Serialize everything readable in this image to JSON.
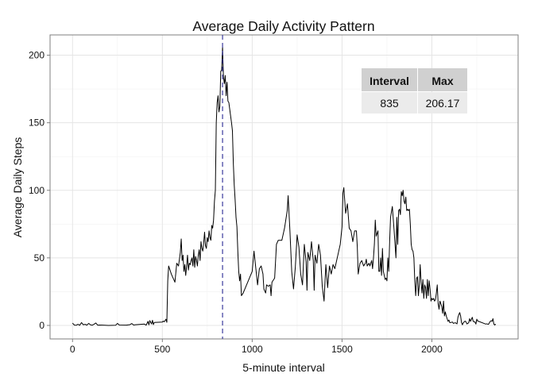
{
  "chart_data": {
    "type": "line",
    "title": "Average Daily Activity Pattern",
    "xlabel": "5-minute interval",
    "ylabel": "Average Daily Steps",
    "xlim": [
      -125,
      2480
    ],
    "ylim": [
      -10,
      215
    ],
    "x_ticks": [
      0,
      500,
      1000,
      1500,
      2000
    ],
    "y_ticks": [
      0,
      50,
      100,
      150,
      200
    ],
    "grid": true,
    "series": [
      {
        "color": "#000000",
        "points": [
          [
            0,
            1.7
          ],
          [
            10,
            0.3
          ],
          [
            20,
            0.1
          ],
          [
            30,
            0.8
          ],
          [
            40,
            0.1
          ],
          [
            50,
            2.1
          ],
          [
            60,
            0.5
          ],
          [
            70,
            0.8
          ],
          [
            80,
            0.2
          ],
          [
            90,
            1.5
          ],
          [
            100,
            0.4
          ],
          [
            110,
            0.2
          ],
          [
            120,
            0.9
          ],
          [
            130,
            1.8
          ],
          [
            140,
            0.2
          ],
          [
            150,
            0.3
          ],
          [
            200,
            0.0
          ],
          [
            240,
            0.1
          ],
          [
            250,
            1.5
          ],
          [
            260,
            0.3
          ],
          [
            300,
            0.2
          ],
          [
            320,
            0.6
          ],
          [
            330,
            1.4
          ],
          [
            340,
            0.3
          ],
          [
            350,
            0.5
          ],
          [
            400,
            1.0
          ],
          [
            410,
            0.2
          ],
          [
            420,
            3.0
          ],
          [
            425,
            0.4
          ],
          [
            430,
            3.6
          ],
          [
            440,
            1.1
          ],
          [
            445,
            3.8
          ],
          [
            450,
            0.6
          ],
          [
            455,
            2.2
          ],
          [
            500,
            2.5
          ],
          [
            505,
            3.2
          ],
          [
            510,
            2.7
          ],
          [
            515,
            3.5
          ],
          [
            520,
            4.6
          ],
          [
            525,
            2.3
          ],
          [
            530,
            33.0
          ],
          [
            535,
            44.0
          ],
          [
            545,
            40.0
          ],
          [
            550,
            38.0
          ],
          [
            560,
            35.0
          ],
          [
            570,
            32.0
          ],
          [
            580,
            46.0
          ],
          [
            590,
            44.0
          ],
          [
            600,
            54.0
          ],
          [
            605,
            64.0
          ],
          [
            610,
            48.0
          ],
          [
            615,
            52.0
          ],
          [
            620,
            40.0
          ],
          [
            625,
            45.0
          ],
          [
            630,
            37.0
          ],
          [
            635,
            44.0
          ],
          [
            640,
            52.0
          ],
          [
            645,
            41.0
          ],
          [
            650,
            46.0
          ],
          [
            655,
            45.0
          ],
          [
            660,
            48.0
          ],
          [
            665,
            50.0
          ],
          [
            670,
            44.0
          ],
          [
            675,
            56.0
          ],
          [
            680,
            43.0
          ],
          [
            685,
            51.0
          ],
          [
            690,
            48.0
          ],
          [
            695,
            44.0
          ],
          [
            700,
            52.0
          ],
          [
            705,
            56.0
          ],
          [
            710,
            48.0
          ],
          [
            715,
            62.0
          ],
          [
            720,
            57.0
          ],
          [
            725,
            55.0
          ],
          [
            730,
            61.0
          ],
          [
            735,
            69.0
          ],
          [
            740,
            59.0
          ],
          [
            745,
            57.0
          ],
          [
            750,
            65.0
          ],
          [
            755,
            62.0
          ],
          [
            760,
            70.0
          ],
          [
            765,
            65.0
          ],
          [
            770,
            63.0
          ],
          [
            775,
            74.0
          ],
          [
            780,
            72.0
          ],
          [
            785,
            78.0
          ],
          [
            790,
            92.0
          ],
          [
            795,
            100.0
          ],
          [
            800,
            150.0
          ],
          [
            805,
            165.0
          ],
          [
            810,
            170.0
          ],
          [
            815,
            158.0
          ],
          [
            820,
            162.0
          ],
          [
            825,
            188.0
          ],
          [
            830,
            189.0
          ],
          [
            835,
            206.17
          ],
          [
            840,
            184.0
          ],
          [
            845,
            179.0
          ],
          [
            850,
            185.0
          ],
          [
            855,
            170.0
          ],
          [
            860,
            180.0
          ],
          [
            865,
            166.0
          ],
          [
            870,
            165.0
          ],
          [
            880,
            155.0
          ],
          [
            885,
            150.0
          ],
          [
            890,
            144.0
          ],
          [
            895,
            120.0
          ],
          [
            900,
            104.0
          ],
          [
            905,
            93.0
          ],
          [
            910,
            80.0
          ],
          [
            915,
            73.0
          ],
          [
            920,
            55.0
          ],
          [
            925,
            40.0
          ],
          [
            930,
            33.0
          ],
          [
            935,
            38.0
          ],
          [
            940,
            22.0
          ],
          [
            945,
            23.0
          ],
          [
            950,
            24.0
          ],
          [
            1000,
            40.0
          ],
          [
            1010,
            55.0
          ],
          [
            1030,
            30.0
          ],
          [
            1040,
            42.0
          ],
          [
            1050,
            44.0
          ],
          [
            1060,
            38.0
          ],
          [
            1065,
            27.0
          ],
          [
            1075,
            24.0
          ],
          [
            1080,
            30.0
          ],
          [
            1090,
            29.0
          ],
          [
            1100,
            30.0
          ],
          [
            1105,
            22.0
          ],
          [
            1110,
            32.0
          ],
          [
            1125,
            35.0
          ],
          [
            1135,
            60.0
          ],
          [
            1145,
            63.0
          ],
          [
            1165,
            63.0
          ],
          [
            1180,
            72.0
          ],
          [
            1195,
            85.0
          ],
          [
            1200,
            96.0
          ],
          [
            1210,
            70.0
          ],
          [
            1220,
            40.0
          ],
          [
            1230,
            27.0
          ],
          [
            1240,
            43.0
          ],
          [
            1250,
            67.0
          ],
          [
            1260,
            58.0
          ],
          [
            1270,
            38.0
          ],
          [
            1280,
            30.0
          ],
          [
            1290,
            60.0
          ],
          [
            1300,
            47.0
          ],
          [
            1305,
            26.0
          ],
          [
            1310,
            54.0
          ],
          [
            1320,
            48.0
          ],
          [
            1330,
            62.0
          ],
          [
            1340,
            48.0
          ],
          [
            1345,
            26.0
          ],
          [
            1350,
            52.0
          ],
          [
            1360,
            46.0
          ],
          [
            1370,
            60.0
          ],
          [
            1380,
            52.0
          ],
          [
            1390,
            29.0
          ],
          [
            1400,
            18.0
          ],
          [
            1410,
            45.0
          ],
          [
            1420,
            28.0
          ],
          [
            1430,
            44.0
          ],
          [
            1440,
            38.0
          ],
          [
            1450,
            45.0
          ],
          [
            1460,
            42.0
          ],
          [
            1470,
            48.0
          ],
          [
            1480,
            54.0
          ],
          [
            1490,
            60.0
          ],
          [
            1500,
            73.0
          ],
          [
            1505,
            98.0
          ],
          [
            1510,
            102.0
          ],
          [
            1520,
            83.0
          ],
          [
            1530,
            90.0
          ],
          [
            1540,
            72.0
          ],
          [
            1550,
            70.0
          ],
          [
            1560,
            62.0
          ],
          [
            1570,
            70.0
          ],
          [
            1580,
            70.0
          ],
          [
            1585,
            58.0
          ],
          [
            1590,
            38.0
          ],
          [
            1600,
            46.0
          ],
          [
            1610,
            48.0
          ],
          [
            1620,
            44.0
          ],
          [
            1630,
            46.0
          ],
          [
            1635,
            49.0
          ],
          [
            1640,
            44.0
          ],
          [
            1650,
            46.0
          ],
          [
            1655,
            44.0
          ],
          [
            1660,
            46.0
          ],
          [
            1665,
            48.0
          ],
          [
            1670,
            42.0
          ],
          [
            1675,
            50.0
          ],
          [
            1680,
            60.0
          ],
          [
            1685,
            78.0
          ],
          [
            1690,
            66.0
          ],
          [
            1700,
            70.0
          ],
          [
            1705,
            40.0
          ],
          [
            1710,
            40.0
          ],
          [
            1715,
            50.0
          ],
          [
            1720,
            37.0
          ],
          [
            1725,
            57.0
          ],
          [
            1730,
            40.0
          ],
          [
            1740,
            34.0
          ],
          [
            1745,
            35.0
          ],
          [
            1750,
            33.0
          ],
          [
            1755,
            50.0
          ],
          [
            1760,
            40.0
          ],
          [
            1765,
            62.0
          ],
          [
            1770,
            80.0
          ],
          [
            1780,
            88.0
          ],
          [
            1790,
            70.0
          ],
          [
            1800,
            50.0
          ],
          [
            1805,
            80.0
          ],
          [
            1810,
            60.0
          ],
          [
            1815,
            85.0
          ],
          [
            1820,
            86.0
          ],
          [
            1825,
            82.0
          ],
          [
            1830,
            99.0
          ],
          [
            1835,
            96.0
          ],
          [
            1840,
            100.0
          ],
          [
            1845,
            92.0
          ],
          [
            1850,
            90.0
          ],
          [
            1855,
            95.0
          ],
          [
            1860,
            85.0
          ],
          [
            1865,
            86.0
          ],
          [
            1870,
            85.0
          ],
          [
            1875,
            86.0
          ],
          [
            1880,
            75.0
          ],
          [
            1885,
            60.0
          ],
          [
            1890,
            56.0
          ],
          [
            1895,
            55.0
          ],
          [
            1900,
            50.0
          ],
          [
            1905,
            33.0
          ],
          [
            1910,
            22.0
          ],
          [
            1915,
            35.0
          ],
          [
            1920,
            36.0
          ],
          [
            1925,
            22.0
          ],
          [
            1930,
            30.0
          ],
          [
            1935,
            45.0
          ],
          [
            1940,
            32.0
          ],
          [
            1945,
            24.0
          ],
          [
            1950,
            34.0
          ],
          [
            1955,
            20.0
          ],
          [
            1960,
            30.0
          ],
          [
            1965,
            28.0
          ],
          [
            1970,
            20.0
          ],
          [
            1975,
            34.0
          ],
          [
            1980,
            22.0
          ],
          [
            1985,
            33.0
          ],
          [
            1990,
            27.0
          ],
          [
            1995,
            18.0
          ],
          [
            2000,
            20.0
          ],
          [
            2005,
            19.0
          ],
          [
            2010,
            20.0
          ],
          [
            2015,
            18.0
          ],
          [
            2020,
            19.0
          ],
          [
            2025,
            24.0
          ],
          [
            2030,
            30.0
          ],
          [
            2035,
            16.0
          ],
          [
            2040,
            12.0
          ],
          [
            2045,
            18.0
          ],
          [
            2050,
            16.0
          ],
          [
            2055,
            14.0
          ],
          [
            2060,
            9.0
          ],
          [
            2065,
            18.0
          ],
          [
            2070,
            7.0
          ],
          [
            2075,
            10.0
          ],
          [
            2080,
            7.0
          ],
          [
            2085,
            5.0
          ],
          [
            2090,
            3.0
          ],
          [
            2095,
            4.0
          ],
          [
            2100,
            2.0
          ],
          [
            2115,
            2.5
          ],
          [
            2120,
            1.5
          ],
          [
            2130,
            2.0
          ],
          [
            2140,
            1.2
          ],
          [
            2145,
            6.0
          ],
          [
            2150,
            8.0
          ],
          [
            2155,
            9.5
          ],
          [
            2160,
            7.0
          ],
          [
            2165,
            2.0
          ],
          [
            2170,
            0.5
          ],
          [
            2175,
            2.0
          ],
          [
            2185,
            3.2
          ],
          [
            2190,
            2.6
          ],
          [
            2195,
            1.1
          ],
          [
            2200,
            1.5
          ],
          [
            2205,
            2.0
          ],
          [
            2210,
            5.0
          ],
          [
            2215,
            3.0
          ],
          [
            2225,
            6.0
          ],
          [
            2230,
            3.0
          ],
          [
            2240,
            2.5
          ],
          [
            2245,
            1.0
          ],
          [
            2250,
            4.6
          ],
          [
            2255,
            3.3
          ],
          [
            2300,
            1.0
          ],
          [
            2305,
            1.2
          ],
          [
            2315,
            0.8
          ],
          [
            2325,
            3.0
          ],
          [
            2330,
            3.5
          ],
          [
            2335,
            3.0
          ],
          [
            2340,
            5.0
          ],
          [
            2345,
            1.0
          ],
          [
            2350,
            0.3
          ],
          [
            2355,
            1.0
          ]
        ]
      }
    ],
    "vline": {
      "x": 835,
      "color": "#3a3a9c",
      "style": "dashed"
    },
    "table": {
      "headers": [
        "Interval",
        "Max"
      ],
      "rows": [
        [
          "835",
          "206.17"
        ]
      ]
    }
  }
}
